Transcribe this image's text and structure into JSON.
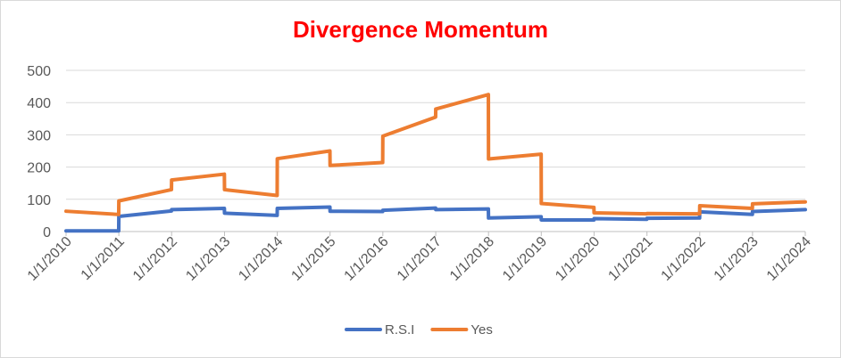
{
  "chart_data": {
    "type": "line",
    "title": "Divergence Momentum",
    "xlabel": "",
    "ylabel": "",
    "ylim": [
      0,
      500
    ],
    "yticks": [
      0,
      100,
      200,
      300,
      400,
      500
    ],
    "xlim": [
      "1/1/2010",
      "1/1/2024"
    ],
    "xticks": [
      "1/1/2010",
      "1/1/2011",
      "1/1/2012",
      "1/1/2013",
      "1/1/2014",
      "1/1/2015",
      "1/1/2016",
      "1/1/2017",
      "1/1/2018",
      "1/1/2019",
      "1/1/2020",
      "1/1/2021",
      "1/1/2022",
      "1/1/2023",
      "1/1/2024"
    ],
    "grid": true,
    "legend_position": "bottom",
    "series": [
      {
        "name": "R.S.I",
        "color": "#4472c4",
        "points": [
          [
            "1/1/2010",
            2
          ],
          [
            "12/31/2010",
            2
          ],
          [
            "1/1/2011",
            47
          ],
          [
            "12/31/2011",
            64
          ],
          [
            "1/1/2012",
            68
          ],
          [
            "12/31/2012",
            72
          ],
          [
            "1/1/2013",
            57
          ],
          [
            "12/31/2013",
            50
          ],
          [
            "1/1/2014",
            72
          ],
          [
            "12/31/2014",
            76
          ],
          [
            "1/1/2015",
            63
          ],
          [
            "12/31/2015",
            62
          ],
          [
            "1/1/2016",
            66
          ],
          [
            "12/31/2016",
            73
          ],
          [
            "1/1/2017",
            68
          ],
          [
            "12/31/2017",
            70
          ],
          [
            "1/1/2018",
            42
          ],
          [
            "12/31/2018",
            46
          ],
          [
            "1/1/2019",
            36
          ],
          [
            "12/31/2019",
            36
          ],
          [
            "1/1/2020",
            40
          ],
          [
            "12/31/2020",
            38
          ],
          [
            "1/1/2021",
            41
          ],
          [
            "12/31/2021",
            42
          ],
          [
            "1/1/2022",
            61
          ],
          [
            "12/31/2022",
            53
          ],
          [
            "1/1/2023",
            62
          ],
          [
            "1/1/2024",
            68
          ]
        ]
      },
      {
        "name": "Yes",
        "color": "#ed7d31",
        "points": [
          [
            "1/1/2010",
            63
          ],
          [
            "12/31/2010",
            53
          ],
          [
            "1/1/2011",
            95
          ],
          [
            "12/31/2011",
            130
          ],
          [
            "1/1/2012",
            160
          ],
          [
            "12/31/2012",
            178
          ],
          [
            "1/1/2013",
            130
          ],
          [
            "12/31/2013",
            112
          ],
          [
            "1/1/2014",
            226
          ],
          [
            "12/31/2014",
            250
          ],
          [
            "1/1/2015",
            205
          ],
          [
            "12/31/2015",
            214
          ],
          [
            "1/1/2016",
            296
          ],
          [
            "12/31/2016",
            355
          ],
          [
            "1/1/2017",
            380
          ],
          [
            "12/31/2017",
            425
          ],
          [
            "1/1/2018",
            225
          ],
          [
            "12/31/2018",
            240
          ],
          [
            "1/1/2019",
            87
          ],
          [
            "12/31/2019",
            75
          ],
          [
            "1/1/2020",
            58
          ],
          [
            "12/31/2020",
            55
          ],
          [
            "1/1/2021",
            56
          ],
          [
            "12/31/2021",
            55
          ],
          [
            "1/1/2022",
            80
          ],
          [
            "12/31/2022",
            72
          ],
          [
            "1/1/2023",
            86
          ],
          [
            "1/1/2024",
            92
          ]
        ]
      }
    ]
  }
}
